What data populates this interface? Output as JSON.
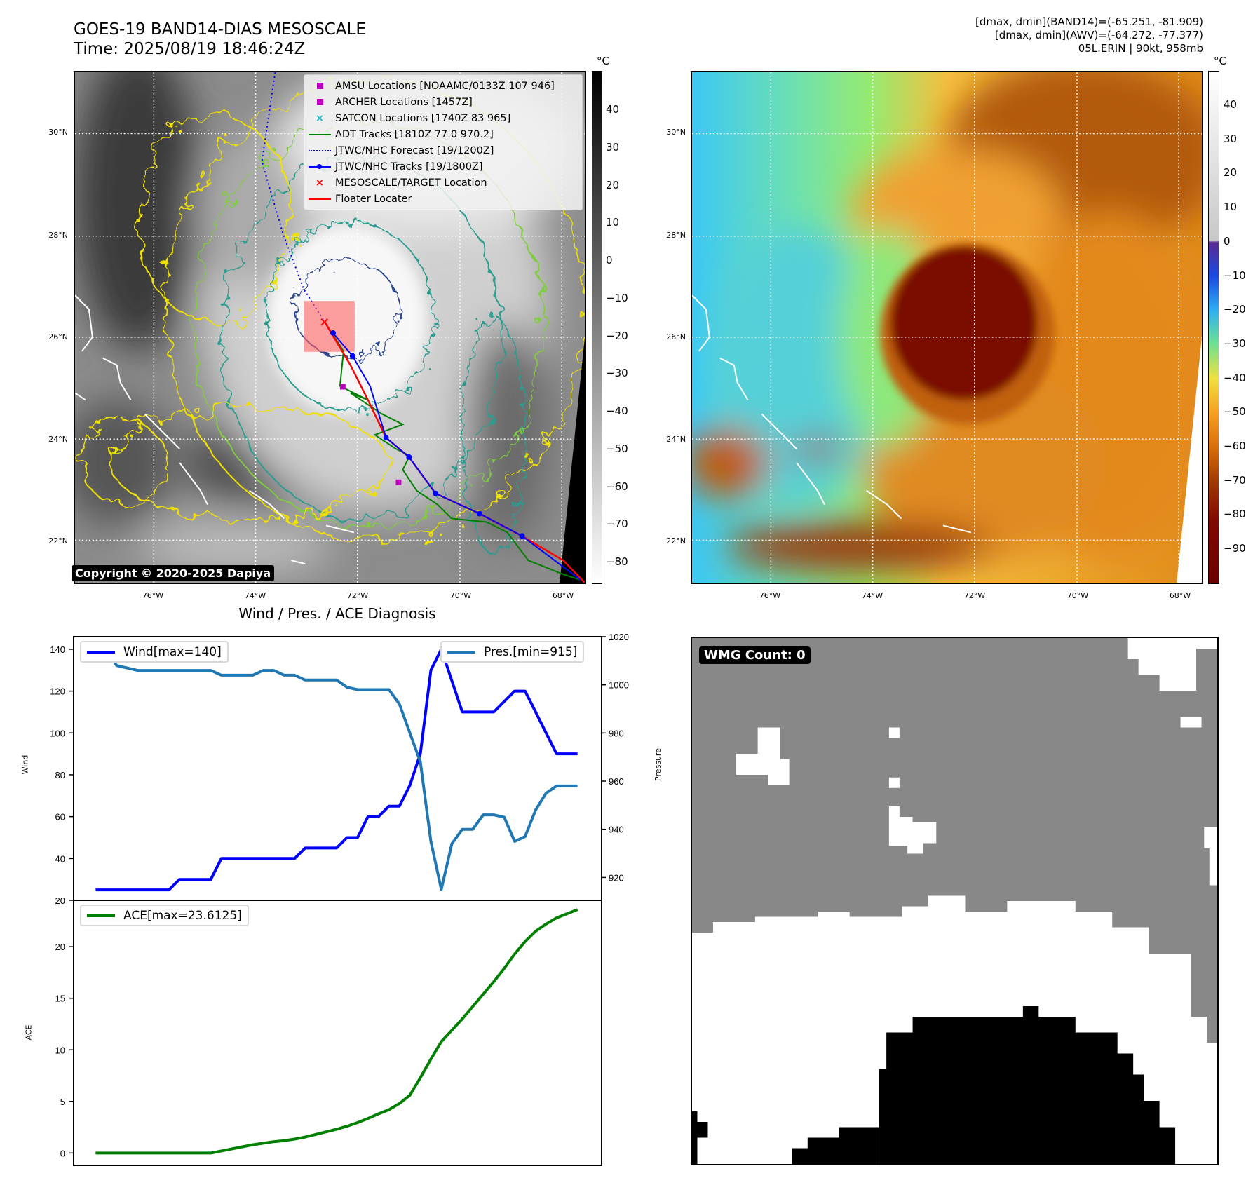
{
  "header": {
    "title_line1": "GOES-19 BAND14-DIAS MESOSCALE",
    "title_line2": "Time: 2025/08/19 18:46:24Z",
    "info_line1": "[dmax, dmin](BAND14)=(-65.251, -81.909)",
    "info_line2": "[dmax, dmin](AWV)=(-64.272, -77.377)",
    "info_line3": "05L.ERIN | 90kt, 958mb"
  },
  "maps": {
    "lat_labels": [
      "30°N",
      "28°N",
      "26°N",
      "24°N",
      "22°N"
    ],
    "lon_labels": [
      "76°W",
      "74°W",
      "72°W",
      "70°W",
      "68°W"
    ],
    "unit_label": "°C",
    "left_colorbar_ticks": [
      "40",
      "30",
      "20",
      "10",
      "0",
      "−10",
      "−20",
      "−30",
      "−40",
      "−50",
      "−60",
      "−70",
      "−80"
    ],
    "right_colorbar_ticks": [
      "40",
      "30",
      "20",
      "10",
      "0",
      "−10",
      "−20",
      "−30",
      "−40",
      "−50",
      "−60",
      "−70",
      "−80",
      "−90"
    ],
    "copyright": "Copyright © 2020-2025 Dapiya",
    "legend": [
      {
        "label": "AMSU Locations [NOAAMC/0133Z 107 946]",
        "symbol": "square",
        "color": "#c000c0"
      },
      {
        "label": "ARCHER Locations [1457Z]",
        "symbol": "square",
        "color": "#c000c0"
      },
      {
        "label": "SATCON Locations [1740Z 83 965]",
        "symbol": "x",
        "color": "#17becf"
      },
      {
        "label": "ADT Tracks [1810Z 77.0 970.2]",
        "symbol": "line",
        "color": "#008000"
      },
      {
        "label": "JTWC/NHC Forecast [19/1200Z]",
        "symbol": "dotted",
        "color": "#0000ff"
      },
      {
        "label": "JTWC/NHC Tracks [19/1800Z]",
        "symbol": "line-dot",
        "color": "#0000ff"
      },
      {
        "label": "MESOSCALE/TARGET Location",
        "symbol": "x",
        "color": "#ff0000"
      },
      {
        "label": "Floater Locater",
        "symbol": "line",
        "color": "#ff0000"
      }
    ]
  },
  "wmg": {
    "label": "WMG Count: 0"
  },
  "chart_data": [
    {
      "type": "line",
      "title": "Wind / Pres. / ACE Diagnosis",
      "ylabel": "Wind",
      "y2label": "Pressure",
      "ylim": [
        20,
        146
      ],
      "y2lim": [
        910.5,
        1020
      ],
      "yticks": [
        20,
        40,
        60,
        80,
        100,
        120,
        140
      ],
      "y2ticks": [
        920,
        940,
        960,
        980,
        1000,
        1020
      ],
      "xlim": [
        -2.1,
        48.3
      ],
      "x": [
        0,
        1,
        2,
        3,
        4,
        5,
        6,
        7,
        8,
        9,
        10,
        11,
        12,
        13,
        14,
        15,
        16,
        17,
        18,
        19,
        20,
        21,
        22,
        23,
        24,
        25,
        26,
        27,
        28,
        29,
        30,
        31,
        32,
        33,
        34,
        35,
        36,
        37,
        38,
        39,
        40,
        41,
        42,
        43,
        44,
        45,
        46
      ],
      "series": [
        {
          "name": "Wind[max=140]",
          "axis": "left",
          "color": "#0000ff",
          "values": [
            25,
            25,
            25,
            25,
            25,
            25,
            25,
            25,
            30,
            30,
            30,
            30,
            40,
            40,
            40,
            40,
            40,
            40,
            40,
            40,
            45,
            45,
            45,
            45,
            50,
            50,
            60,
            60,
            65,
            65,
            75,
            90,
            130,
            140,
            125,
            110,
            110,
            110,
            110,
            115,
            120,
            120,
            110,
            100,
            90,
            90,
            90
          ]
        },
        {
          "name": "Pres.[min=915]",
          "axis": "right",
          "color": "#1f77b4",
          "values": [
            1015,
            1015,
            1008,
            1007,
            1006,
            1006,
            1006,
            1006,
            1006,
            1006,
            1006,
            1006,
            1004,
            1004,
            1004,
            1004,
            1006,
            1006,
            1004,
            1004,
            1002,
            1002,
            1002,
            1002,
            999,
            998,
            998,
            998,
            998,
            992,
            980,
            968,
            935,
            915,
            934,
            940,
            940,
            946,
            946,
            945,
            935,
            937,
            948,
            955,
            958,
            958,
            958
          ]
        }
      ],
      "legend_left": "Wind[max=140]",
      "legend_right": "Pres.[min=915]"
    },
    {
      "type": "line",
      "ylabel": "ACE",
      "ylim": [
        -1.2,
        24.5
      ],
      "yticks": [
        0,
        5,
        10,
        15,
        20
      ],
      "xlim": [
        -2.1,
        48.3
      ],
      "x": [
        0,
        1,
        2,
        3,
        4,
        5,
        6,
        7,
        8,
        9,
        10,
        11,
        12,
        13,
        14,
        15,
        16,
        17,
        18,
        19,
        20,
        21,
        22,
        23,
        24,
        25,
        26,
        27,
        28,
        29,
        30,
        31,
        32,
        33,
        34,
        35,
        36,
        37,
        38,
        39,
        40,
        41,
        42,
        43,
        44,
        45,
        46
      ],
      "series": [
        {
          "name": "ACE[max=23.6125]",
          "color": "#008000",
          "values": [
            0,
            0,
            0,
            0,
            0,
            0,
            0,
            0,
            0,
            0,
            0,
            0,
            0.2,
            0.4,
            0.6,
            0.8,
            0.95,
            1.1,
            1.2,
            1.35,
            1.55,
            1.8,
            2.05,
            2.3,
            2.6,
            2.95,
            3.35,
            3.8,
            4.2,
            4.8,
            5.6,
            7.3,
            9.1,
            10.8,
            11.9,
            13.0,
            14.2,
            15.4,
            16.6,
            17.9,
            19.3,
            20.5,
            21.5,
            22.2,
            22.8,
            23.2,
            23.6
          ]
        }
      ],
      "legend": "ACE[max=23.6125]"
    }
  ]
}
